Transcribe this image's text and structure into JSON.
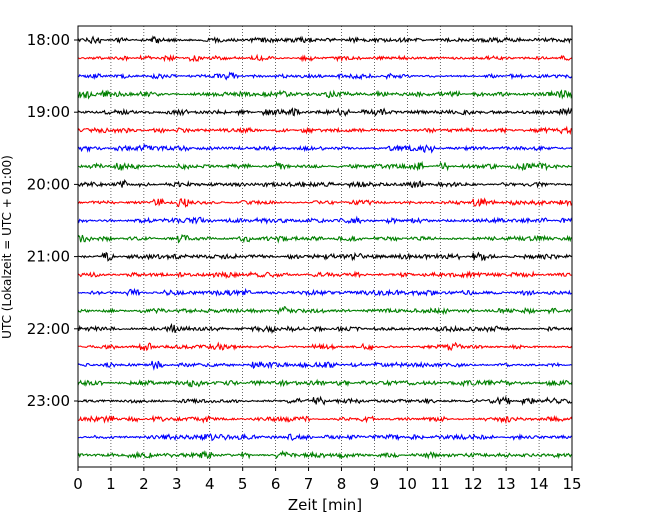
{
  "chart_data": {
    "type": "line",
    "xlabel": "Zeit  [min]",
    "ylabel": "UTC (Lokalzeit = UTC + 01:00)",
    "xlim": [
      0,
      15
    ],
    "x_ticks": [
      "0",
      "1",
      "2",
      "3",
      "4",
      "5",
      "6",
      "7",
      "8",
      "9",
      "10",
      "11",
      "12",
      "13",
      "14",
      "15"
    ],
    "y_ticks": [
      "18:00",
      "19:00",
      "20:00",
      "21:00",
      "22:00",
      "23:00"
    ],
    "grid": "vertical dotted",
    "trace_colors": [
      "#000000",
      "#ff0000",
      "#0000ff",
      "#008000"
    ],
    "trace_count": 24,
    "trace_start_times": [
      "18:00",
      "18:15",
      "18:30",
      "18:45",
      "19:00",
      "19:15",
      "19:30",
      "19:45",
      "20:00",
      "20:15",
      "20:30",
      "20:45",
      "21:00",
      "21:15",
      "21:30",
      "21:45",
      "22:00",
      "22:15",
      "22:30",
      "22:45",
      "23:00",
      "23:15",
      "23:30",
      "23:45"
    ],
    "trace_duration_min": 15
  }
}
